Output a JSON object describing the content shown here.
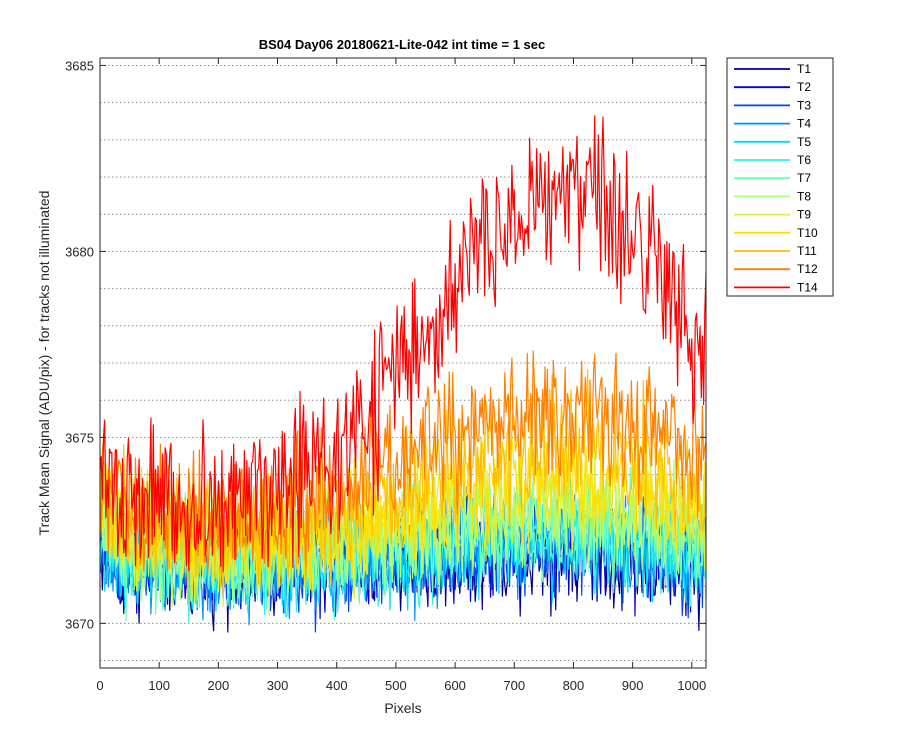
{
  "chart_data": {
    "type": "line",
    "title": "BS04 Day06 20180621-Lite-042 int time = 1 sec",
    "xlabel": "Pixels",
    "ylabel": "Track Mean Signal (ADU/pix) - for tracks not illuminated",
    "xlim": [
      0,
      1024
    ],
    "ylim": [
      3668.8,
      3685.2
    ],
    "x_ticks": [
      0,
      100,
      200,
      300,
      400,
      500,
      600,
      700,
      800,
      900,
      1000
    ],
    "x_tick_labels": [
      "0",
      "100",
      "200",
      "300",
      "400",
      "500",
      "600",
      "700",
      "800",
      "900",
      "1000"
    ],
    "y_ticks": [
      3670,
      3675,
      3680,
      3685
    ],
    "y_tick_labels": [
      "3670",
      "3675",
      "3680",
      "3685"
    ],
    "grid": "horizontal-dotted",
    "legend_position": "outside-top-right",
    "x": [
      0,
      32,
      64,
      96,
      128,
      160,
      192,
      224,
      256,
      288,
      320,
      352,
      384,
      416,
      448,
      480,
      512,
      544,
      576,
      608,
      640,
      672,
      704,
      736,
      768,
      800,
      832,
      864,
      896,
      928,
      960,
      992,
      1024
    ],
    "series": [
      {
        "name": "T1",
        "color": "#00008f",
        "amplitude": 1.2,
        "values": [
          3672.0,
          3671.6,
          3671.5,
          3671.5,
          3671.5,
          3671.4,
          3671.5,
          3671.5,
          3671.4,
          3671.5,
          3671.5,
          3671.4,
          3671.5,
          3671.6,
          3671.6,
          3671.6,
          3671.6,
          3671.7,
          3671.7,
          3671.8,
          3671.8,
          3671.8,
          3671.9,
          3671.9,
          3671.9,
          3671.9,
          3671.9,
          3671.8,
          3671.8,
          3671.7,
          3671.6,
          3671.5,
          3671.5
        ]
      },
      {
        "name": "T2",
        "color": "#0000d0",
        "amplitude": 1.2,
        "values": [
          3672.1,
          3671.6,
          3671.5,
          3671.5,
          3671.5,
          3671.5,
          3671.5,
          3671.5,
          3671.5,
          3671.5,
          3671.5,
          3671.5,
          3671.5,
          3671.6,
          3671.6,
          3671.7,
          3671.7,
          3671.7,
          3671.8,
          3671.8,
          3671.9,
          3671.9,
          3672.0,
          3672.0,
          3672.0,
          3672.0,
          3672.0,
          3671.9,
          3671.9,
          3671.8,
          3671.7,
          3671.6,
          3671.6
        ]
      },
      {
        "name": "T3",
        "color": "#0044ff",
        "amplitude": 1.2,
        "values": [
          3672.1,
          3671.7,
          3671.6,
          3671.6,
          3671.5,
          3671.5,
          3671.5,
          3671.5,
          3671.5,
          3671.5,
          3671.5,
          3671.5,
          3671.6,
          3671.6,
          3671.7,
          3671.7,
          3671.7,
          3671.8,
          3671.8,
          3671.9,
          3672.0,
          3672.0,
          3672.0,
          3672.1,
          3672.1,
          3672.1,
          3672.1,
          3672.0,
          3672.0,
          3671.9,
          3671.8,
          3671.7,
          3671.6
        ]
      },
      {
        "name": "T4",
        "color": "#0090ff",
        "amplitude": 1.2,
        "values": [
          3672.2,
          3671.7,
          3671.6,
          3671.6,
          3671.6,
          3671.5,
          3671.6,
          3671.5,
          3671.5,
          3671.5,
          3671.5,
          3671.6,
          3671.6,
          3671.7,
          3671.7,
          3671.8,
          3671.8,
          3671.9,
          3671.9,
          3672.0,
          3672.0,
          3672.1,
          3672.1,
          3672.2,
          3672.2,
          3672.2,
          3672.2,
          3672.1,
          3672.1,
          3672.0,
          3671.9,
          3671.8,
          3671.7
        ]
      },
      {
        "name": "T5",
        "color": "#00d8ff",
        "amplitude": 1.25,
        "values": [
          3672.3,
          3671.8,
          3671.7,
          3671.6,
          3671.6,
          3671.6,
          3671.6,
          3671.6,
          3671.6,
          3671.6,
          3671.6,
          3671.6,
          3671.7,
          3671.7,
          3671.8,
          3671.8,
          3671.9,
          3671.9,
          3672.0,
          3672.1,
          3672.1,
          3672.2,
          3672.2,
          3672.3,
          3672.3,
          3672.3,
          3672.3,
          3672.2,
          3672.2,
          3672.1,
          3672.0,
          3671.9,
          3671.8
        ]
      },
      {
        "name": "T6",
        "color": "#30f0e8",
        "amplitude": 1.25,
        "values": [
          3672.4,
          3671.9,
          3671.8,
          3671.7,
          3671.7,
          3671.7,
          3671.6,
          3671.6,
          3671.6,
          3671.6,
          3671.6,
          3671.7,
          3671.7,
          3671.8,
          3671.9,
          3671.9,
          3672.0,
          3672.0,
          3672.1,
          3672.2,
          3672.2,
          3672.3,
          3672.4,
          3672.4,
          3672.4,
          3672.4,
          3672.4,
          3672.4,
          3672.3,
          3672.2,
          3672.1,
          3672.0,
          3671.9
        ]
      },
      {
        "name": "T7",
        "color": "#70ffb8",
        "amplitude": 1.3,
        "values": [
          3672.6,
          3672.0,
          3671.9,
          3671.9,
          3671.8,
          3671.8,
          3671.8,
          3671.8,
          3671.8,
          3671.8,
          3671.8,
          3671.8,
          3671.9,
          3672.0,
          3672.0,
          3672.1,
          3672.2,
          3672.2,
          3672.3,
          3672.4,
          3672.4,
          3672.5,
          3672.6,
          3672.6,
          3672.7,
          3672.7,
          3672.6,
          3672.6,
          3672.5,
          3672.4,
          3672.3,
          3672.2,
          3672.1
        ]
      },
      {
        "name": "T8",
        "color": "#a8ff80",
        "amplitude": 1.3,
        "values": [
          3672.8,
          3672.2,
          3672.1,
          3672.0,
          3672.0,
          3672.0,
          3672.0,
          3671.9,
          3671.9,
          3672.0,
          3672.0,
          3672.0,
          3672.1,
          3672.2,
          3672.3,
          3672.4,
          3672.5,
          3672.5,
          3672.6,
          3672.7,
          3672.8,
          3672.9,
          3672.9,
          3673.0,
          3673.0,
          3673.0,
          3673.0,
          3672.9,
          3672.8,
          3672.7,
          3672.6,
          3672.5,
          3672.3
        ]
      },
      {
        "name": "T9",
        "color": "#d8f040",
        "amplitude": 1.35,
        "values": [
          3673.0,
          3672.4,
          3672.3,
          3672.2,
          3672.2,
          3672.1,
          3672.1,
          3672.1,
          3672.1,
          3672.1,
          3672.1,
          3672.2,
          3672.3,
          3672.4,
          3672.5,
          3672.6,
          3672.7,
          3672.8,
          3672.9,
          3673.0,
          3673.1,
          3673.2,
          3673.3,
          3673.4,
          3673.4,
          3673.4,
          3673.4,
          3673.3,
          3673.2,
          3673.1,
          3672.9,
          3672.8,
          3672.6
        ]
      },
      {
        "name": "T10",
        "color": "#ffe000",
        "amplitude": 1.4,
        "values": [
          3673.2,
          3672.6,
          3672.5,
          3672.4,
          3672.4,
          3672.3,
          3672.3,
          3672.3,
          3672.3,
          3672.3,
          3672.4,
          3672.4,
          3672.5,
          3672.7,
          3672.8,
          3672.9,
          3673.1,
          3673.2,
          3673.3,
          3673.5,
          3673.6,
          3673.7,
          3673.8,
          3673.9,
          3674.0,
          3674.0,
          3673.9,
          3673.9,
          3673.8,
          3673.6,
          3673.4,
          3673.3,
          3673.1
        ]
      },
      {
        "name": "T11",
        "color": "#ffc000",
        "amplitude": 1.45,
        "values": [
          3673.5,
          3672.9,
          3672.8,
          3672.7,
          3672.7,
          3672.6,
          3672.6,
          3672.6,
          3672.6,
          3672.6,
          3672.7,
          3672.8,
          3672.9,
          3673.1,
          3673.3,
          3673.5,
          3673.7,
          3673.8,
          3674.0,
          3674.2,
          3674.4,
          3674.5,
          3674.6,
          3674.7,
          3674.8,
          3674.8,
          3674.8,
          3674.7,
          3674.6,
          3674.4,
          3674.2,
          3674.0,
          3673.8
        ]
      },
      {
        "name": "T12",
        "color": "#ff8000",
        "amplitude": 1.6,
        "values": [
          3673.8,
          3673.2,
          3673.1,
          3673.0,
          3673.0,
          3673.0,
          3672.9,
          3672.9,
          3673.0,
          3673.0,
          3673.1,
          3673.2,
          3673.4,
          3673.6,
          3673.9,
          3674.1,
          3674.4,
          3674.6,
          3674.8,
          3675.0,
          3675.2,
          3675.3,
          3675.5,
          3675.6,
          3675.6,
          3675.7,
          3675.6,
          3675.6,
          3675.4,
          3675.3,
          3675.1,
          3674.8,
          3674.5
        ]
      },
      {
        "name": "T14",
        "color": "#ff0000",
        "amplitude": 2.0,
        "values": [
          3674.6,
          3673.4,
          3673.3,
          3673.2,
          3673.2,
          3673.2,
          3673.2,
          3673.3,
          3673.4,
          3673.6,
          3673.8,
          3674.1,
          3674.5,
          3675.0,
          3675.6,
          3676.3,
          3677.0,
          3677.8,
          3678.6,
          3679.4,
          3680.1,
          3680.7,
          3681.2,
          3681.6,
          3681.8,
          3681.8,
          3681.6,
          3681.2,
          3680.7,
          3680.1,
          3679.3,
          3678.2,
          3676.6
        ]
      }
    ]
  }
}
